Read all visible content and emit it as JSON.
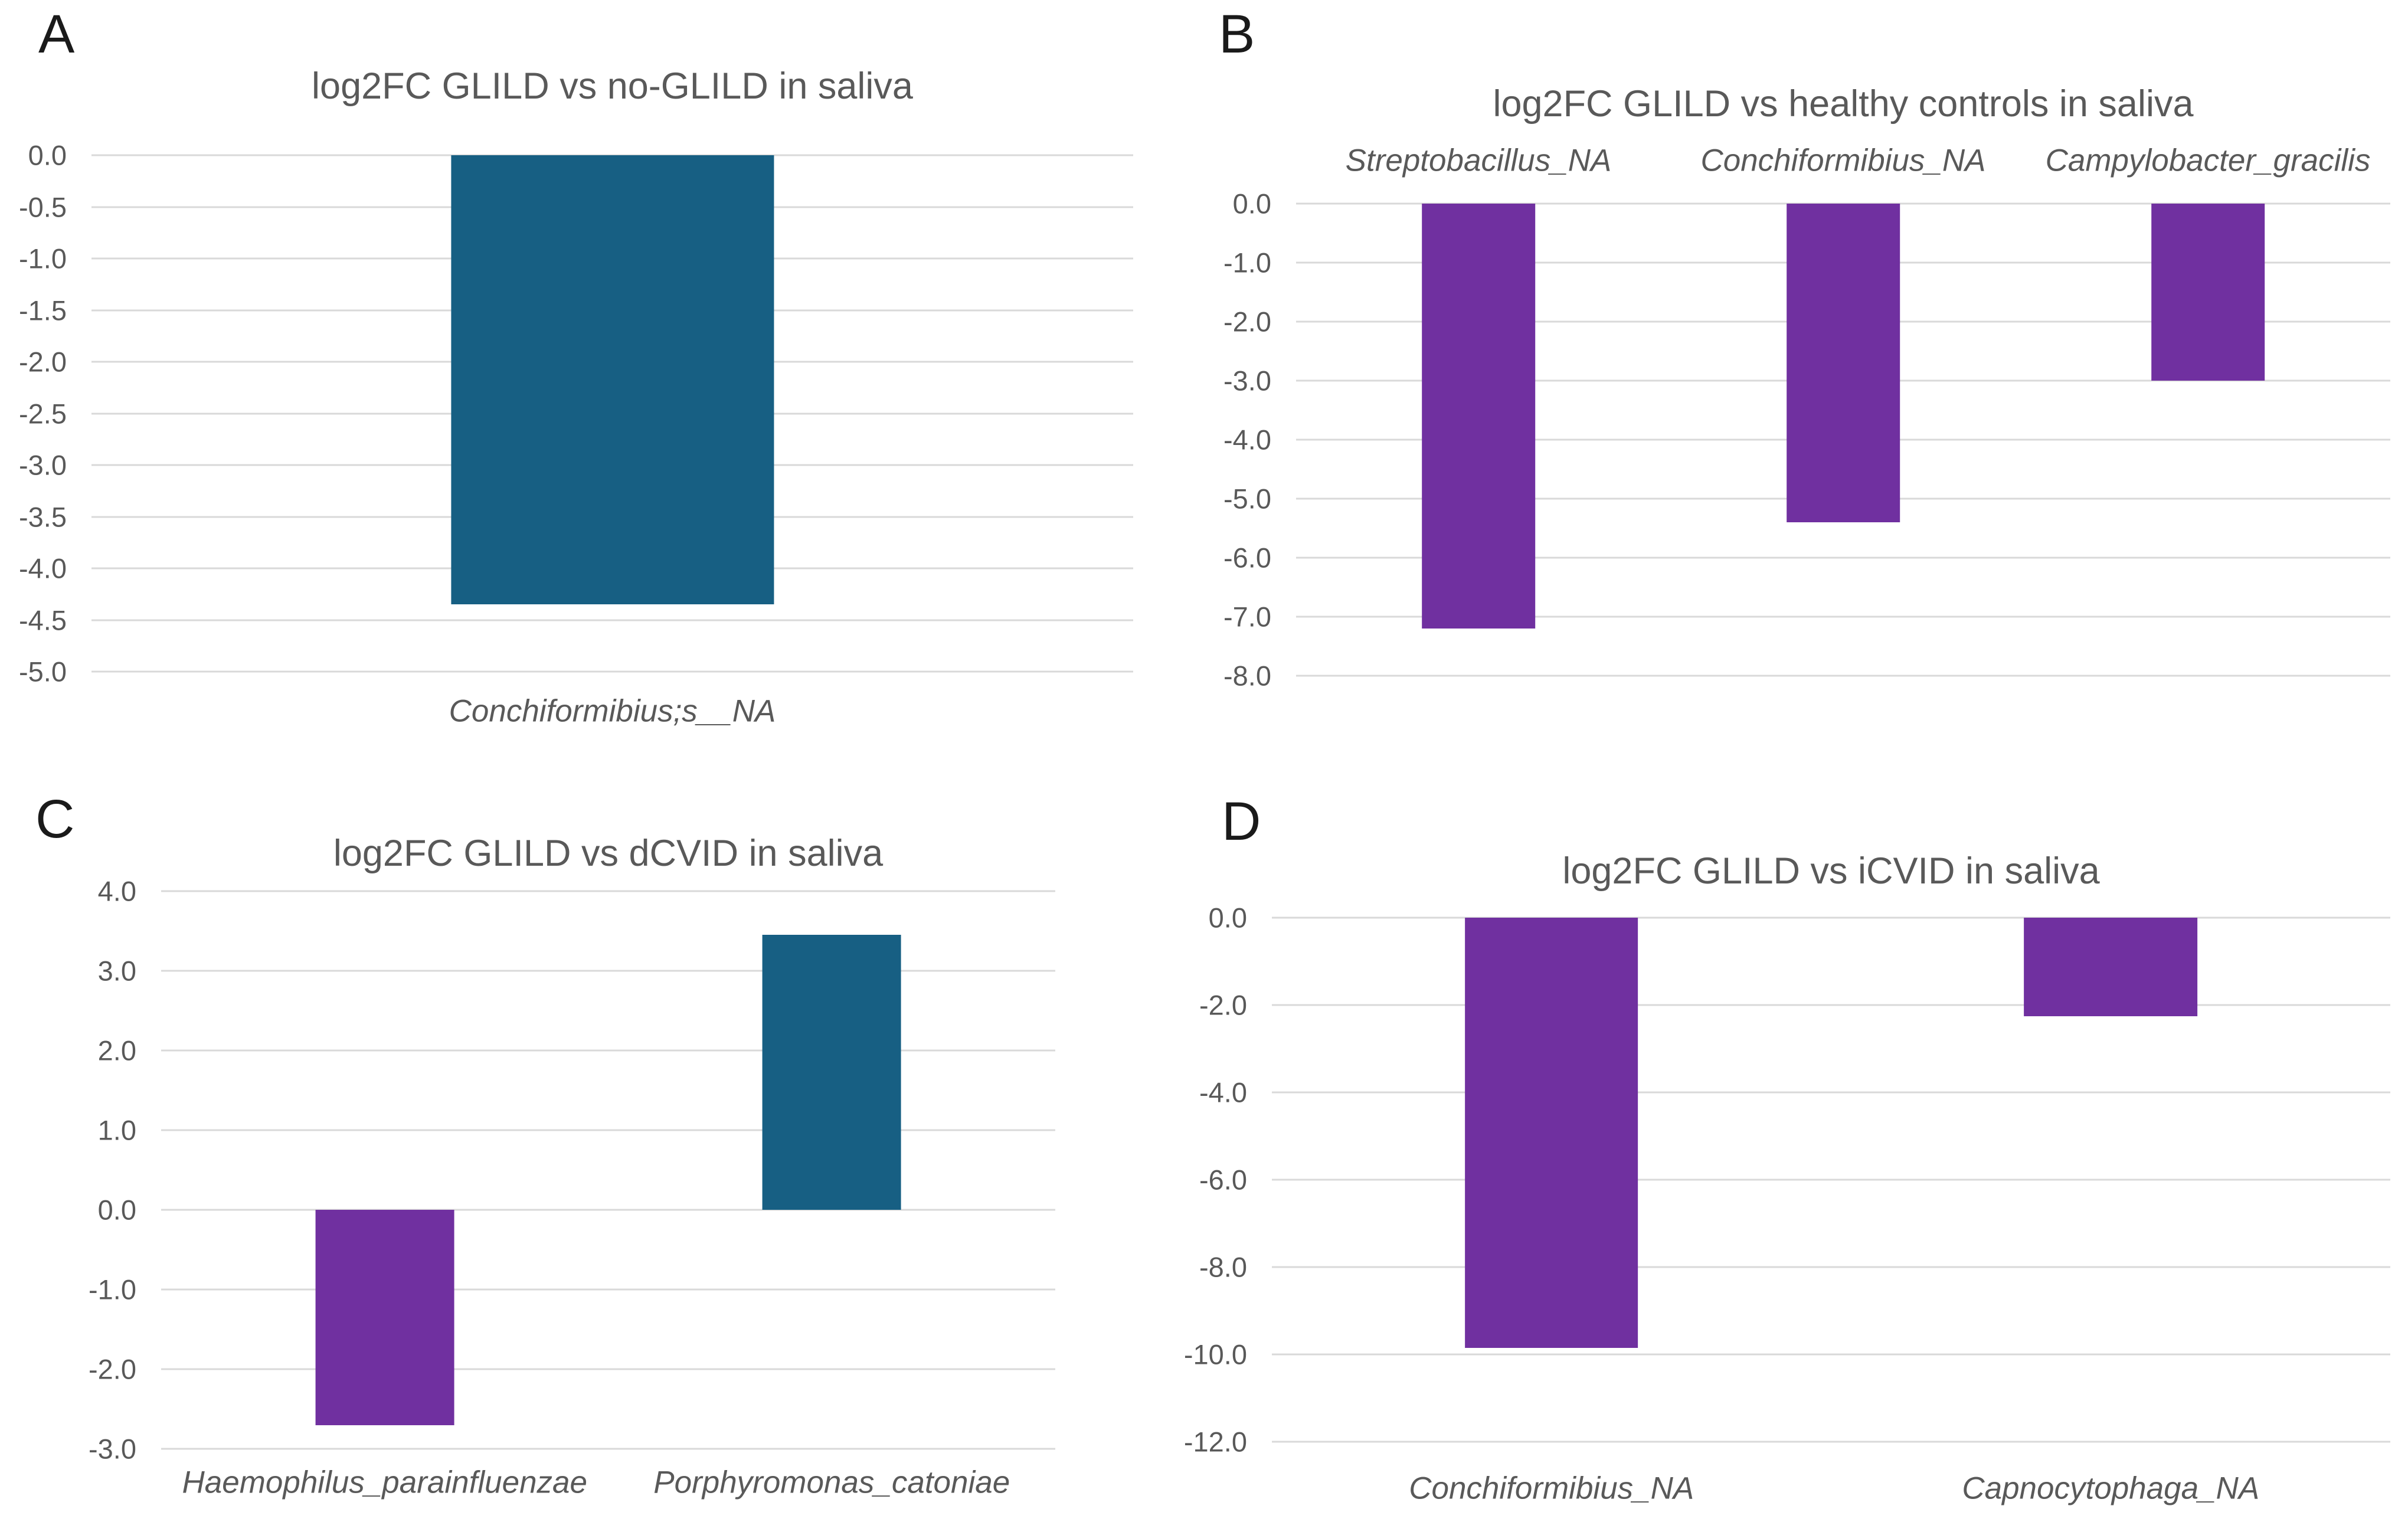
{
  "figure": {
    "background": "#ffffff",
    "colors": {
      "bar_teal": "#175f83",
      "bar_purple": "#7030a0",
      "gridline": "#d9d9d9",
      "axis_text": "#595959",
      "panel_letter": "#1a1a1a"
    }
  },
  "chart_data": [
    {
      "panel": "A",
      "type": "bar",
      "title": "log2FC GLILD vs no-GLILD in saliva",
      "categories": [
        "Conchiformibius;s__NA"
      ],
      "values": [
        -4.35
      ],
      "bar_colors": [
        "#175f83"
      ],
      "ylim": [
        -5,
        0
      ],
      "ytick_step": 0.5,
      "ytick_labels": [
        "0.0",
        "-0.5",
        "-1.0",
        "-1.5",
        "-2.0",
        "-2.5",
        "-3.0",
        "-3.5",
        "-4.0",
        "-4.5",
        "-5.0"
      ],
      "category_labels_position": "bottom",
      "grid": true,
      "legend": "none",
      "xlabel": "",
      "ylabel": ""
    },
    {
      "panel": "B",
      "type": "bar",
      "title": "log2FC GLILD vs healthy controls in saliva",
      "categories": [
        "Streptobacillus_NA",
        "Conchiformibius_NA",
        "Campylobacter_gracilis"
      ],
      "values": [
        -7.2,
        -5.4,
        -3.0
      ],
      "bar_colors": [
        "#7030a0",
        "#7030a0",
        "#7030a0"
      ],
      "ylim": [
        -8,
        0
      ],
      "ytick_step": 1,
      "ytick_labels": [
        "0.0",
        "-1.0",
        "-2.0",
        "-3.0",
        "-4.0",
        "-5.0",
        "-6.0",
        "-7.0",
        "-8.0"
      ],
      "category_labels_position": "top",
      "grid": true,
      "legend": "none",
      "xlabel": "",
      "ylabel": ""
    },
    {
      "panel": "C",
      "type": "bar",
      "title": "log2FC GLILD vs dCVID in saliva",
      "categories": [
        "Haemophilus_parainfluenzae",
        "Porphyromonas_catoniae"
      ],
      "values": [
        -2.7,
        3.45
      ],
      "bar_colors": [
        "#7030a0",
        "#175f83"
      ],
      "ylim": [
        -3,
        4
      ],
      "ytick_step": 1,
      "ytick_labels": [
        "4.0",
        "3.0",
        "2.0",
        "1.0",
        "0.0",
        "-1.0",
        "-2.0",
        "-3.0"
      ],
      "category_labels_position": "bottom",
      "grid": true,
      "legend": "none",
      "xlabel": "",
      "ylabel": ""
    },
    {
      "panel": "D",
      "type": "bar",
      "title": "log2FC GLILD vs iCVID in saliva",
      "categories": [
        "Conchiformibius_NA",
        "Capnocytophaga_NA"
      ],
      "values": [
        -9.85,
        -2.25
      ],
      "bar_colors": [
        "#7030a0",
        "#7030a0"
      ],
      "ylim": [
        -12,
        0
      ],
      "ytick_step": 2,
      "ytick_labels": [
        "0.0",
        "-2.0",
        "-4.0",
        "-6.0",
        "-8.0",
        "-10.0",
        "-12.0"
      ],
      "category_labels_position": "bottom",
      "grid": true,
      "legend": "none",
      "xlabel": "",
      "ylabel": ""
    }
  ]
}
